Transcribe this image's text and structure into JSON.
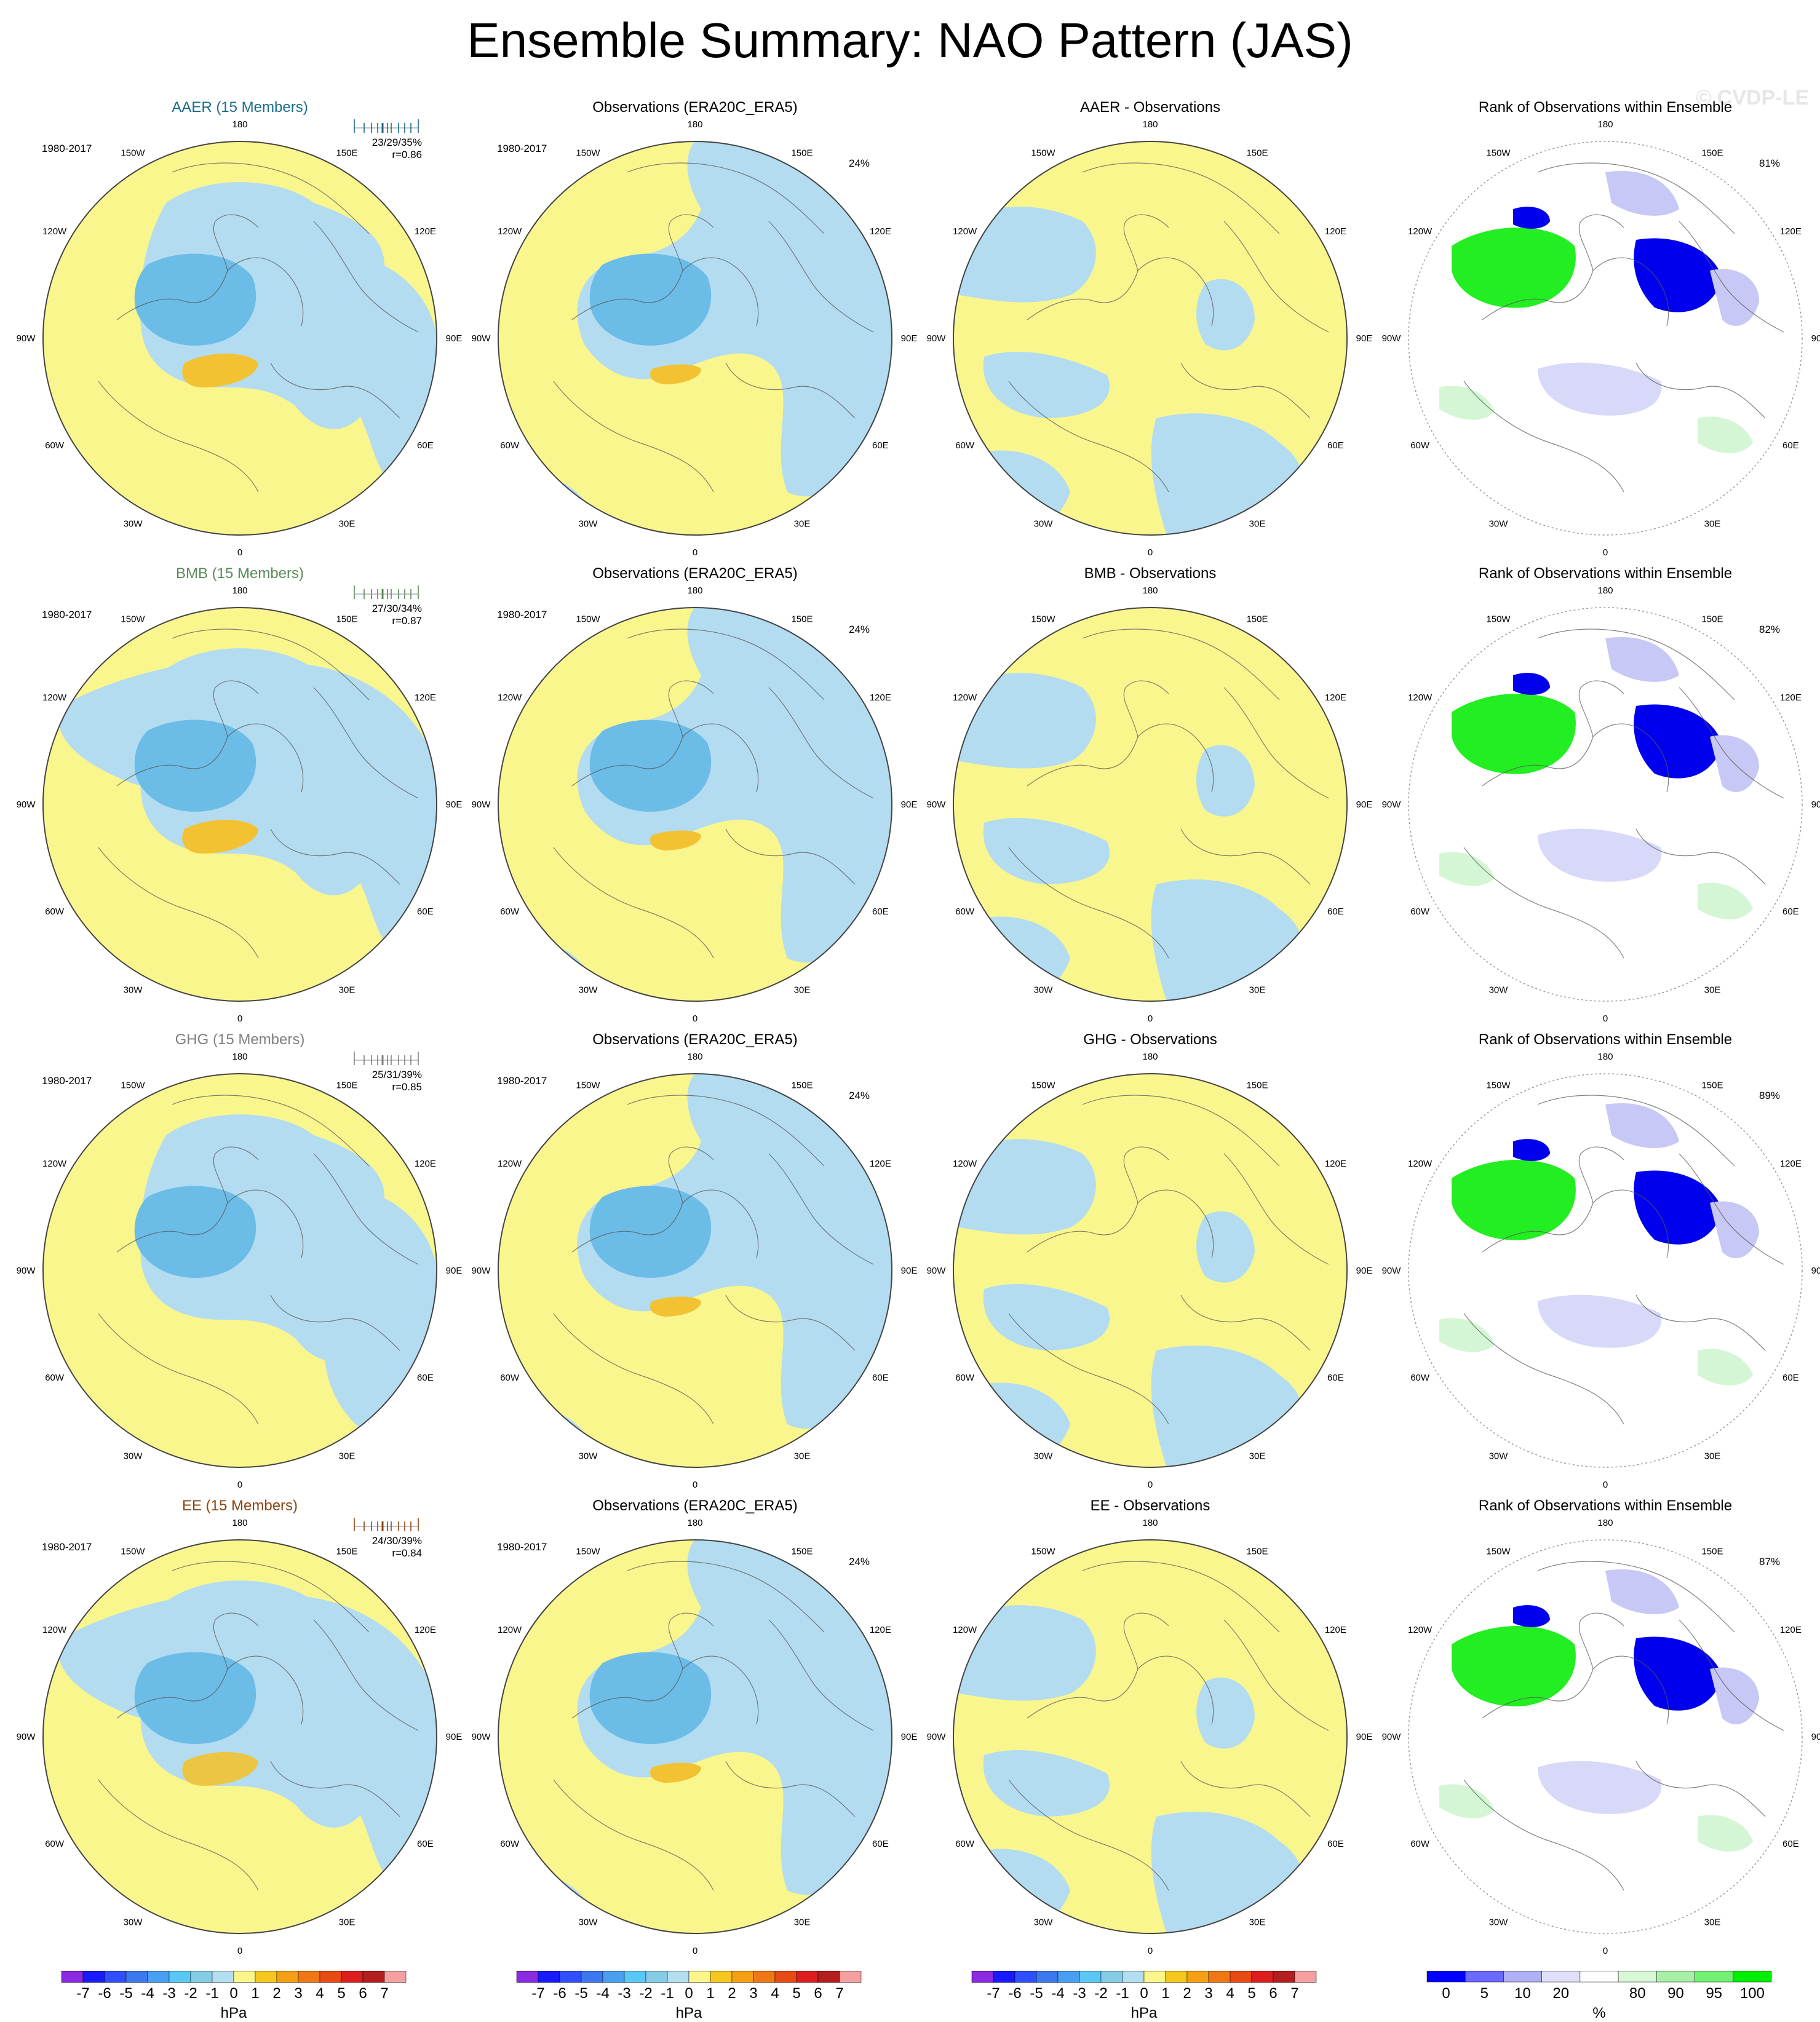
{
  "title": "Ensemble Summary: NAO Pattern (JAS)",
  "watermark": "© CVDP-LE",
  "period": "1980-2017",
  "lon_labels": [
    "180",
    "150E",
    "120E",
    "90E",
    "60E",
    "30E",
    "0",
    "30W",
    "60W",
    "90W",
    "120W",
    "150W"
  ],
  "rows": [
    {
      "ensemble": {
        "title": "AAER (15 Members)",
        "color": "#1a6b8a",
        "stats": "23/29/35%",
        "r": "r=0.86"
      },
      "observations": {
        "title": "Observations (ERA20C_ERA5)",
        "pct": "24%"
      },
      "difference": {
        "title": "AAER - Observations"
      },
      "rank": {
        "title": "Rank of Observations within Ensemble",
        "pct": "81%"
      }
    },
    {
      "ensemble": {
        "title": "BMB (15 Members)",
        "color": "#5a8a5a",
        "stats": "27/30/34%",
        "r": "r=0.87"
      },
      "observations": {
        "title": "Observations (ERA20C_ERA5)",
        "pct": "24%"
      },
      "difference": {
        "title": "BMB - Observations"
      },
      "rank": {
        "title": "Rank of Observations within Ensemble",
        "pct": "82%"
      }
    },
    {
      "ensemble": {
        "title": "GHG (15 Members)",
        "color": "#808080",
        "stats": "25/31/39%",
        "r": "r=0.85"
      },
      "observations": {
        "title": "Observations (ERA20C_ERA5)",
        "pct": "24%"
      },
      "difference": {
        "title": "GHG - Observations"
      },
      "rank": {
        "title": "Rank of Observations within Ensemble",
        "pct": "89%"
      }
    },
    {
      "ensemble": {
        "title": "EE (15 Members)",
        "color": "#8b4513",
        "stats": "24/30/39%",
        "r": "r=0.84"
      },
      "observations": {
        "title": "Observations (ERA20C_ERA5)",
        "pct": "24%"
      },
      "difference": {
        "title": "EE - Observations"
      },
      "rank": {
        "title": "Rank of Observations within Ensemble",
        "pct": "87%"
      }
    }
  ],
  "colorbar_hpa": {
    "labels": [
      "-7",
      "-6",
      "-5",
      "-4",
      "-3",
      "-2",
      "-1",
      "0",
      "1",
      "2",
      "3",
      "4",
      "5",
      "6",
      "7"
    ],
    "unit": "hPa",
    "colors": [
      "#8a2be2",
      "#1a1aff",
      "#3050ff",
      "#3c78f0",
      "#4aa0f0",
      "#5ac8f5",
      "#85cce6",
      "#b3def0",
      "#fbf58c",
      "#f5c61e",
      "#f5a014",
      "#f07814",
      "#e84a14",
      "#dc1e1e",
      "#b41e1e",
      "#f5a0a0"
    ]
  },
  "colorbar_rank": {
    "labels": [
      "0",
      "5",
      "10",
      "20",
      "80",
      "90",
      "95",
      "100"
    ],
    "unit": "%",
    "colors": [
      "#0000ff",
      "#6a6aff",
      "#b0b0f5",
      "#e0e0fa",
      "#ffffff",
      "#d8f8d8",
      "#a8f0a8",
      "#74f074",
      "#00ee00"
    ]
  },
  "palette": {
    "yellow": "#faf68e",
    "blue": "#b3dcf0",
    "mid": "#6cbce8",
    "orange": "#f2c232",
    "dkblue": "#0000ee",
    "lavender": "#c8c8f6",
    "green": "#22ee22",
    "ltgreen": "#d4f6d4"
  }
}
